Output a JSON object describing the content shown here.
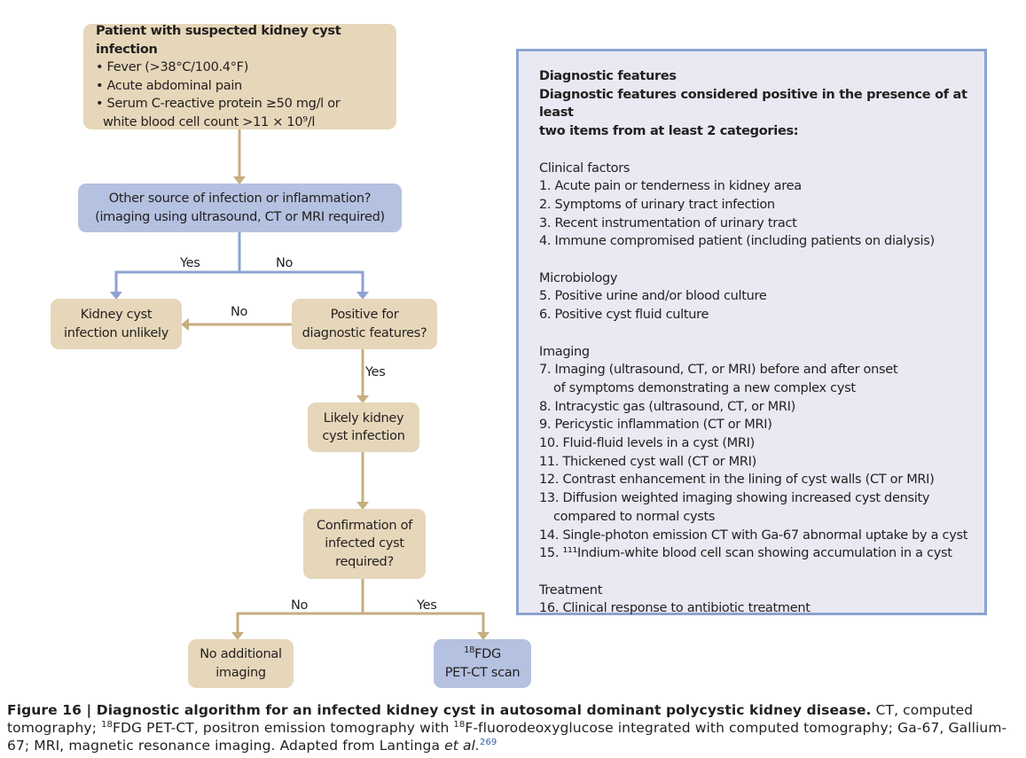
{
  "flowchart": {
    "start": {
      "title": "Patient with suspected kidney cyst infection",
      "items": [
        "• Fever (>38°C/100.4°F)",
        "• Acute abdominal pain",
        "• Serum C-reactive protein ≥50 mg/l or",
        "white blood cell count >11 × 10⁹/l"
      ]
    },
    "other_source": [
      "Other source of infection or inflammation?",
      "(imaging using ultrasound, CT or MRI required)"
    ],
    "unlikely": [
      "Kidney cyst",
      "infection unlikely"
    ],
    "positive": [
      "Positive for",
      "diagnostic features?"
    ],
    "likely": [
      "Likely kidney",
      "cyst infection"
    ],
    "confirmation": [
      "Confirmation of",
      "infected cyst",
      "required?"
    ],
    "no_imaging": [
      "No additional",
      "imaging"
    ],
    "pet": {
      "sup": "18",
      "line1": "FDG",
      "line2": "PET-CT scan"
    },
    "labels": {
      "yes1": "Yes",
      "no1": "No",
      "no2": "No",
      "yes2": "Yes",
      "no3": "No",
      "yes3": "Yes"
    },
    "colors": {
      "tan_box": "#e6d7ba",
      "tan_arrow": "#c6ae7e",
      "blue_box": "#b4c1e0",
      "blue_arrow": "#8ea2d2"
    }
  },
  "panel": {
    "title": "Diagnostic features",
    "intro": [
      "Diagnostic features considered positive in the presence of at least",
      "two items from at least 2 categories:"
    ],
    "sections": [
      {
        "heading": "Clinical factors",
        "items": [
          "1. Acute pain or tenderness in kidney area",
          "2. Symptoms of urinary tract infection",
          "3. Recent instrumentation of urinary tract",
          "4. Immune compromised patient (including patients on dialysis)"
        ]
      },
      {
        "heading": "Microbiology",
        "items": [
          "5. Positive urine and/or blood culture",
          "6. Positive cyst fluid culture"
        ]
      },
      {
        "heading": "Imaging",
        "items": [
          "7. Imaging (ultrasound, CT, or MRI) before and after onset",
          "of symptoms demonstrating a new complex cyst",
          "8. Intracystic gas (ultrasound, CT, or MRI)",
          "9. Pericystic inflammation (CT or MRI)",
          "10. Fluid-fluid levels in a cyst (MRI)",
          "11. Thickened cyst wall (CT or MRI)",
          "12. Contrast enhancement in the lining of cyst walls (CT or MRI)",
          "13. Diffusion weighted imaging showing increased cyst density",
          "compared to normal cysts",
          "14. Single-photon emission CT with Ga-67 abnormal uptake by a cyst",
          "15. ¹¹¹Indium-white blood cell scan showing accumulation in a cyst"
        ]
      },
      {
        "heading": "Treatment",
        "items": [
          "16. Clinical response to antibiotic treatment"
        ]
      }
    ]
  },
  "caption": {
    "bold": "Figure 16 | Diagnostic algorithm for an infected kidney cyst in autosomal dominant polycystic kidney disease.",
    "p1": " CT, computed tomography; ",
    "sup1": "18",
    "p2": "FDG PET-CT, positron emission tomography with ",
    "sup2": "18",
    "p3": "F-fluorodeoxyglucose integrated with computed tomography; Ga-67, Gallium-67; MRI, magnetic resonance imaging. Adapted from Lantinga ",
    "etal": "et al.",
    "ref": "269"
  }
}
